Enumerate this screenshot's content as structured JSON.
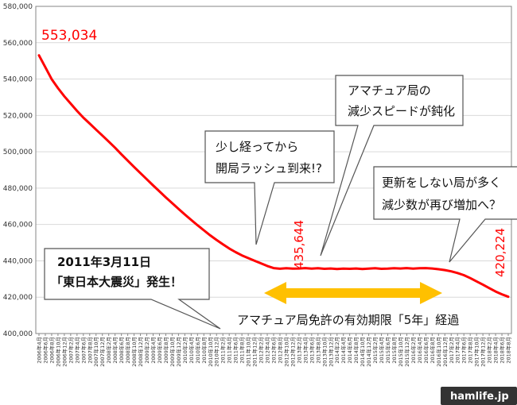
{
  "chart_data": {
    "type": "line",
    "title": "",
    "xlabel": "",
    "ylabel": "",
    "ylim": [
      400000,
      580000
    ],
    "yticks": [
      400000,
      420000,
      440000,
      460000,
      480000,
      500000,
      520000,
      540000,
      560000,
      580000
    ],
    "ytick_labels": [
      "400,000",
      "420,000",
      "440,000",
      "460,000",
      "480,000",
      "500,000",
      "520,000",
      "540,000",
      "560,000",
      "580,000"
    ],
    "grid": true,
    "x": [
      "2006年4月",
      "2006年6月",
      "2006年8月",
      "2006年10月",
      "2006年12月",
      "2007年2月",
      "2007年4月",
      "2007年6月",
      "2007年8月",
      "2007年10月",
      "2007年12月",
      "2008年2月",
      "2008年4月",
      "2008年6月",
      "2008年8月",
      "2008年10月",
      "2008年12月",
      "2009年2月",
      "2009年4月",
      "2009年6月",
      "2009年8月",
      "2009年10月",
      "2009年12月",
      "2010年2月",
      "2010年4月",
      "2010年6月",
      "2010年8月",
      "2010年10月",
      "2010年12月",
      "2011年2月",
      "2011年4月",
      "2011年6月",
      "2011年8月",
      "2011年10月",
      "2011年12月",
      "2012年2月",
      "2012年4月",
      "2012年6月",
      "2012年8月",
      "2012年10月",
      "2012年12月",
      "2013年2月",
      "2013年4月",
      "2013年6月",
      "2013年8月",
      "2013年10月",
      "2013年12月",
      "2014年2月",
      "2014年4月",
      "2014年6月",
      "2014年8月",
      "2014年10月",
      "2014年12月",
      "2015年2月",
      "2015年4月",
      "2015年6月",
      "2015年8月",
      "2015年10月",
      "2015年12月",
      "2016年2月",
      "2016年4月",
      "2016年6月",
      "2016年8月",
      "2016年10月",
      "2016年12月",
      "2017年2月",
      "2017年4月",
      "2017年6月",
      "2017年8月",
      "2017年10月",
      "2017年12月",
      "2018年2月",
      "2018年4月",
      "2018年6月",
      "2018年8月"
    ],
    "series": [
      {
        "color": "#ff0000",
        "values": [
          553034,
          546500,
          540000,
          535000,
          530500,
          526500,
          522500,
          518800,
          515500,
          512200,
          508900,
          505600,
          502200,
          498600,
          495100,
          491600,
          488200,
          484900,
          481500,
          478200,
          474900,
          471800,
          468600,
          465500,
          462500,
          459600,
          456800,
          454000,
          451500,
          449100,
          446800,
          444800,
          443000,
          441500,
          440000,
          438600,
          437200,
          436000,
          435644,
          435900,
          435700,
          435800,
          436000,
          435700,
          435900,
          435600,
          435800,
          435500,
          435700,
          435600,
          435800,
          435500,
          435700,
          435900,
          435600,
          435700,
          435900,
          435800,
          436000,
          435700,
          435900,
          436000,
          435800,
          435400,
          434900,
          434200,
          433300,
          432100,
          430500,
          428700,
          426900,
          425000,
          423100,
          421600,
          420224
        ]
      }
    ],
    "data_labels": {
      "start": "553,034",
      "min": "435,644",
      "end": "420,224"
    },
    "annotations": {
      "quake": [
        "2011年3月11日",
        "「東日本大震災」発生！"
      ],
      "rush": [
        "少し経ってから",
        "開局ラッシュ到来!?"
      ],
      "slowdown": [
        "アマチュア局の",
        "減少スピードが鈍化"
      ],
      "increase": [
        "更新をしない局が多く",
        "減少数が再び増加へ？"
      ],
      "span": "アマチュア局免許の有効期限「5年」経過"
    },
    "colors": {
      "line": "#ff0000",
      "arrow": "#ffc000",
      "grid": "#d9d9d9",
      "axis": "#868686"
    },
    "watermark": "hamlife.jp"
  }
}
